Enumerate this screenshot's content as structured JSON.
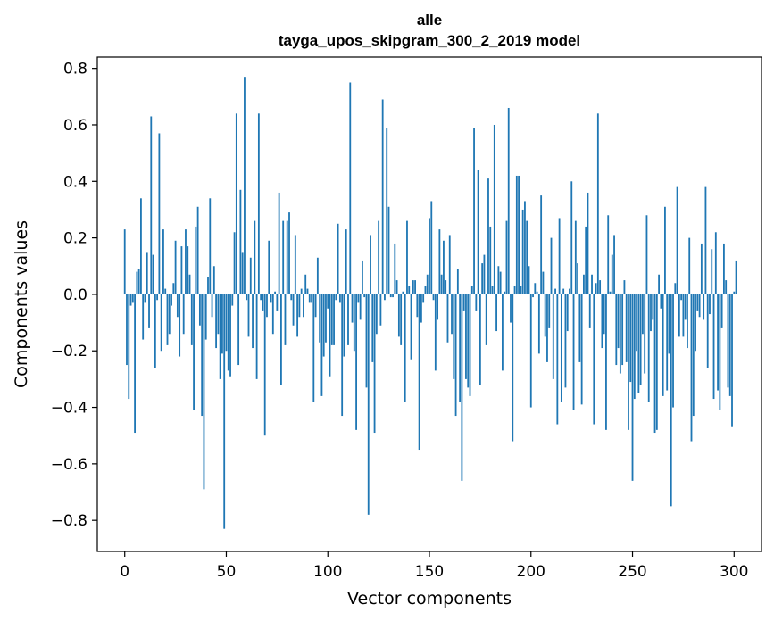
{
  "chart_data": {
    "type": "bar",
    "title": "alle",
    "subtitle": "tayga_upos_skipgram_300_2_2019 model",
    "xlabel": "Vector components",
    "ylabel": "Components values",
    "xlim": [
      -13.5,
      313.5
    ],
    "ylim": [
      -0.91,
      0.84
    ],
    "x_ticks": [
      0,
      50,
      100,
      150,
      200,
      250,
      300
    ],
    "x_tick_labels": [
      "0",
      "50",
      "100",
      "150",
      "200",
      "250",
      "300"
    ],
    "y_ticks": [
      -0.8,
      -0.6,
      -0.4,
      -0.2,
      0.0,
      0.2,
      0.4,
      0.6,
      0.8
    ],
    "y_tick_labels": [
      "−0.8",
      "−0.6",
      "−0.4",
      "−0.2",
      "0.0",
      "0.2",
      "0.4",
      "0.6",
      "0.8"
    ],
    "grid": false,
    "bar_color": "#1f77b4",
    "values": [
      0.23,
      -0.25,
      -0.37,
      -0.04,
      -0.03,
      -0.49,
      0.08,
      0.09,
      0.34,
      -0.16,
      -0.03,
      0.15,
      -0.12,
      0.63,
      0.14,
      -0.26,
      -0.02,
      0.57,
      -0.2,
      0.23,
      0.02,
      -0.18,
      -0.14,
      -0.04,
      0.04,
      0.19,
      -0.08,
      -0.22,
      0.17,
      -0.14,
      0.23,
      0.17,
      0.07,
      -0.18,
      -0.41,
      0.24,
      0.31,
      -0.11,
      -0.43,
      -0.69,
      -0.16,
      0.06,
      0.34,
      -0.08,
      0.1,
      -0.19,
      -0.14,
      -0.3,
      -0.21,
      -0.83,
      -0.2,
      -0.27,
      -0.29,
      -0.04,
      0.22,
      0.64,
      -0.25,
      0.37,
      0.15,
      0.77,
      -0.02,
      -0.15,
      0.13,
      -0.19,
      0.26,
      -0.3,
      0.64,
      -0.02,
      -0.06,
      -0.5,
      -0.08,
      0.19,
      -0.03,
      -0.14,
      0.01,
      -0.06,
      0.36,
      -0.32,
      0.26,
      -0.18,
      0.26,
      0.29,
      -0.02,
      -0.11,
      0.21,
      -0.15,
      -0.08,
      0.02,
      -0.08,
      0.07,
      0.02,
      -0.03,
      -0.03,
      -0.38,
      -0.08,
      0.13,
      -0.17,
      -0.36,
      -0.22,
      -0.17,
      -0.05,
      -0.29,
      -0.18,
      -0.18,
      -0.02,
      0.25,
      -0.03,
      -0.43,
      -0.22,
      0.23,
      -0.18,
      0.75,
      -0.1,
      -0.2,
      -0.48,
      -0.03,
      -0.09,
      0.12,
      -0.01,
      -0.33,
      -0.78,
      0.21,
      -0.24,
      -0.49,
      -0.14,
      0.26,
      -0.11,
      0.69,
      -0.02,
      0.59,
      0.31,
      -0.01,
      -0.01,
      0.18,
      0.05,
      -0.15,
      -0.18,
      0.01,
      -0.38,
      0.26,
      0.03,
      -0.23,
      0.05,
      0.05,
      -0.08,
      -0.55,
      -0.1,
      -0.03,
      0.03,
      0.07,
      0.27,
      0.33,
      -0.02,
      -0.27,
      -0.09,
      0.23,
      0.07,
      0.19,
      0.05,
      -0.17,
      0.21,
      -0.14,
      -0.3,
      -0.43,
      0.09,
      -0.38,
      -0.66,
      -0.06,
      -0.3,
      -0.33,
      -0.36,
      0.03,
      0.59,
      -0.06,
      0.44,
      -0.32,
      0.11,
      0.14,
      -0.18,
      0.41,
      0.24,
      0.03,
      0.6,
      -0.13,
      0.1,
      0.08,
      -0.27,
      0.01,
      0.26,
      0.66,
      -0.1,
      -0.52,
      0.03,
      0.42,
      0.42,
      0.03,
      0.3,
      0.33,
      0.26,
      0.1,
      -0.4,
      -0.01,
      0.04,
      0.01,
      -0.21,
      0.35,
      0.08,
      -0.15,
      -0.24,
      -0.12,
      0.2,
      -0.3,
      0.02,
      -0.46,
      0.27,
      -0.38,
      0.02,
      -0.33,
      -0.13,
      0.02,
      0.4,
      -0.41,
      0.26,
      0.11,
      -0.24,
      -0.39,
      0.07,
      0.24,
      0.36,
      -0.12,
      0.07,
      -0.46,
      0.04,
      0.64,
      0.05,
      -0.19,
      -0.14,
      -0.48,
      0.28,
      0.01,
      0.14,
      0.21,
      -0.25,
      -0.19,
      -0.28,
      -0.25,
      0.05,
      -0.24,
      -0.48,
      -0.31,
      -0.66,
      -0.37,
      -0.2,
      -0.35,
      -0.32,
      -0.14,
      -0.28,
      0.28,
      -0.38,
      -0.13,
      -0.09,
      -0.49,
      -0.48,
      0.07,
      -0.05,
      -0.36,
      0.31,
      -0.34,
      -0.21,
      -0.75,
      -0.4,
      0.04,
      0.38,
      -0.15,
      -0.02,
      -0.15,
      -0.09,
      -0.19,
      0.2,
      -0.52,
      -0.43,
      -0.2,
      -0.06,
      -0.08,
      0.18,
      -0.09,
      0.38,
      -0.26,
      -0.07,
      0.16,
      -0.37,
      0.22,
      -0.34,
      -0.41,
      -0.12,
      0.18,
      0.05,
      -0.33,
      -0.36,
      -0.47,
      0.01,
      0.12
    ]
  }
}
